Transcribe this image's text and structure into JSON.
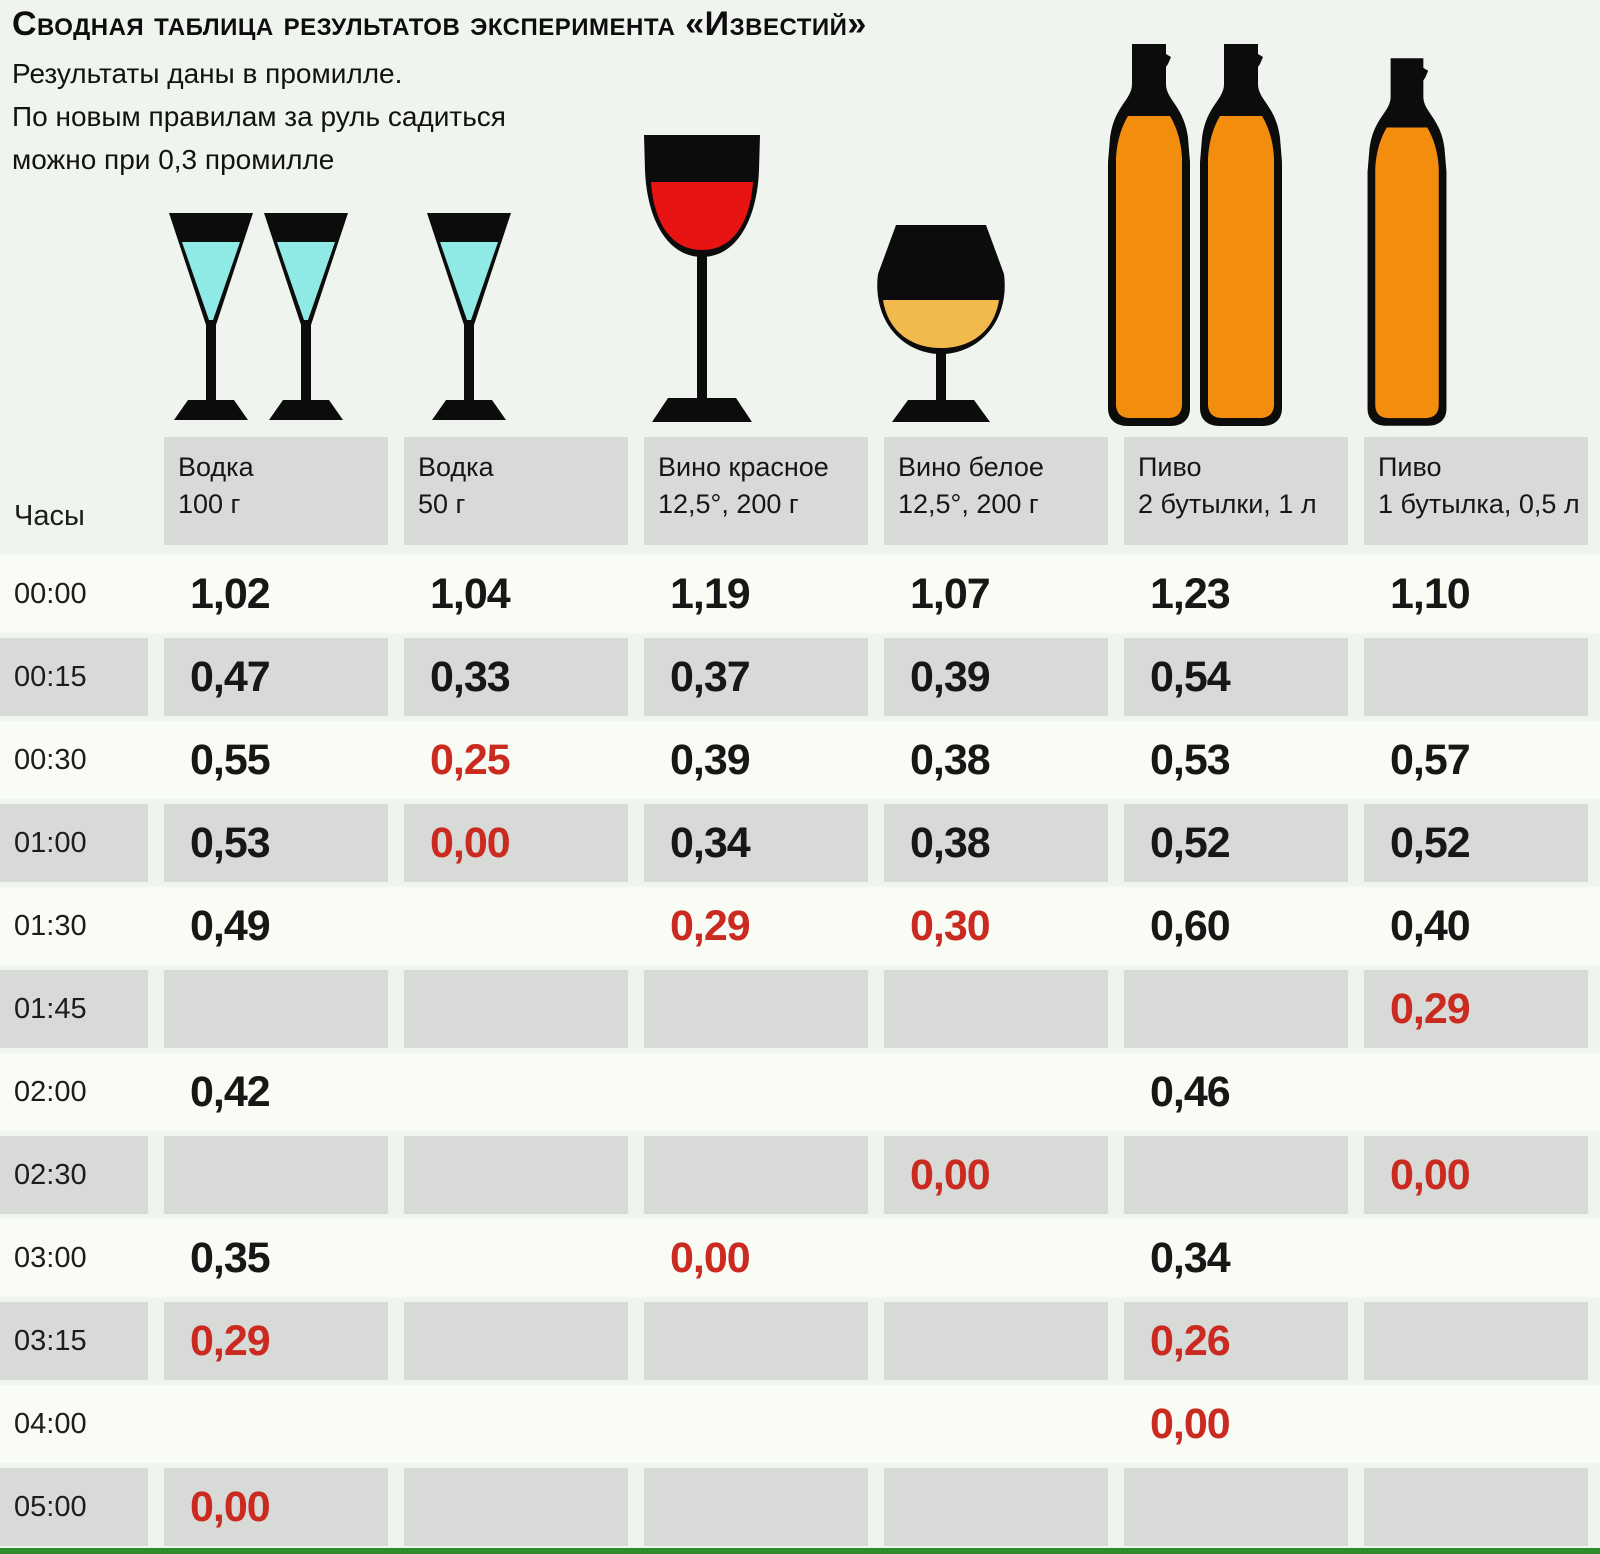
{
  "title": "Сводная таблица результатов эксперимента «Известий»",
  "subtitle_lines": [
    "Результаты даны в промилле.",
    "По новым правилам  за руль садиться",
    "можно при 0,3 промилле"
  ],
  "colors": {
    "page_bg": "#f0f4ee",
    "row_white": "#f9fbf5",
    "cell_gray": "#d7dad6",
    "value_red": "#cb2a20",
    "green_bar": "#2e8b2e",
    "glass_black": "#0c0c0c",
    "vodka_liquid": "#8feae6",
    "red_wine": "#e81414",
    "white_wine": "#f2b94d",
    "beer_orange": "#f28d0e"
  },
  "icons": [
    "vodka-glasses-pair-icon",
    "vodka-glass-icon",
    "red-wine-glass-icon",
    "white-wine-glass-icon",
    "beer-bottles-pair-icon",
    "beer-bottle-icon"
  ],
  "table": {
    "time_header": "Часы",
    "columns": [
      {
        "line1": "Водка",
        "line2": "100 г"
      },
      {
        "line1": "Водка",
        "line2": "50 г"
      },
      {
        "line1": "Вино красное",
        "line2": "12,5°, 200 г"
      },
      {
        "line1": "Вино белое",
        "line2": "12,5°, 200 г"
      },
      {
        "line1": "Пиво",
        "line2": "2 бутылки, 1 л"
      },
      {
        "line1": "Пиво",
        "line2": "1 бутылка, 0,5 л"
      }
    ],
    "rows": [
      {
        "time": "00:00",
        "values": [
          {
            "v": "1,02"
          },
          {
            "v": "1,04"
          },
          {
            "v": "1,19"
          },
          {
            "v": "1,07"
          },
          {
            "v": "1,23"
          },
          {
            "v": "1,10"
          }
        ]
      },
      {
        "time": "00:15",
        "values": [
          {
            "v": "0,47"
          },
          {
            "v": "0,33"
          },
          {
            "v": "0,37"
          },
          {
            "v": "0,39"
          },
          {
            "v": "0,54"
          },
          null
        ]
      },
      {
        "time": "00:30",
        "values": [
          {
            "v": "0,55"
          },
          {
            "v": "0,25",
            "red": true
          },
          {
            "v": "0,39"
          },
          {
            "v": "0,38"
          },
          {
            "v": "0,53"
          },
          {
            "v": "0,57"
          }
        ]
      },
      {
        "time": "01:00",
        "values": [
          {
            "v": "0,53"
          },
          {
            "v": "0,00",
            "red": true
          },
          {
            "v": "0,34"
          },
          {
            "v": "0,38"
          },
          {
            "v": "0,52"
          },
          {
            "v": "0,52"
          }
        ]
      },
      {
        "time": "01:30",
        "values": [
          {
            "v": "0,49"
          },
          null,
          {
            "v": "0,29",
            "red": true
          },
          {
            "v": "0,30",
            "red": true
          },
          {
            "v": "0,60"
          },
          {
            "v": "0,40"
          }
        ]
      },
      {
        "time": "01:45",
        "values": [
          null,
          null,
          null,
          null,
          null,
          {
            "v": "0,29",
            "red": true
          }
        ]
      },
      {
        "time": "02:00",
        "values": [
          {
            "v": "0,42"
          },
          null,
          null,
          null,
          {
            "v": "0,46"
          },
          null
        ]
      },
      {
        "time": "02:30",
        "values": [
          null,
          null,
          null,
          {
            "v": "0,00",
            "red": true
          },
          null,
          {
            "v": "0,00",
            "red": true
          }
        ]
      },
      {
        "time": "03:00",
        "values": [
          {
            "v": "0,35"
          },
          null,
          {
            "v": "0,00",
            "red": true
          },
          null,
          {
            "v": "0,34"
          },
          null
        ]
      },
      {
        "time": "03:15",
        "values": [
          {
            "v": "0,29",
            "red": true
          },
          null,
          null,
          null,
          {
            "v": "0,26",
            "red": true
          },
          null
        ]
      },
      {
        "time": "04:00",
        "values": [
          null,
          null,
          null,
          null,
          {
            "v": "0,00",
            "red": true
          },
          null
        ]
      },
      {
        "time": "05:00",
        "values": [
          {
            "v": "0,00",
            "red": true
          },
          null,
          null,
          null,
          null,
          null
        ]
      }
    ]
  },
  "chart_data": {
    "type": "table",
    "title": "Сводная таблица результатов эксперимента «Известий»",
    "unit": "промилле",
    "legal_driving_limit": 0.3,
    "x": [
      "00:00",
      "00:15",
      "00:30",
      "01:00",
      "01:30",
      "01:45",
      "02:00",
      "02:30",
      "03:00",
      "03:15",
      "04:00",
      "05:00"
    ],
    "series": [
      {
        "name": "Водка 100 г",
        "values": [
          1.02,
          0.47,
          0.55,
          0.53,
          0.49,
          null,
          0.42,
          null,
          0.35,
          0.29,
          null,
          0.0
        ]
      },
      {
        "name": "Водка 50 г",
        "values": [
          1.04,
          0.33,
          0.25,
          0.0,
          null,
          null,
          null,
          null,
          null,
          null,
          null,
          null
        ]
      },
      {
        "name": "Вино красное 12,5°, 200 г",
        "values": [
          1.19,
          0.37,
          0.39,
          0.34,
          0.29,
          null,
          null,
          null,
          0.0,
          null,
          null,
          null
        ]
      },
      {
        "name": "Вино белое 12,5°, 200 г",
        "values": [
          1.07,
          0.39,
          0.38,
          0.38,
          0.3,
          null,
          null,
          0.0,
          null,
          null,
          null,
          null
        ]
      },
      {
        "name": "Пиво 2 бутылки, 1 л",
        "values": [
          1.23,
          0.54,
          0.53,
          0.52,
          0.6,
          null,
          0.46,
          null,
          0.34,
          0.26,
          0.0,
          null
        ]
      },
      {
        "name": "Пиво 1 бутылка, 0,5 л",
        "values": [
          1.1,
          null,
          0.57,
          0.52,
          0.4,
          0.29,
          null,
          0.0,
          null,
          null,
          null,
          null
        ]
      }
    ]
  }
}
